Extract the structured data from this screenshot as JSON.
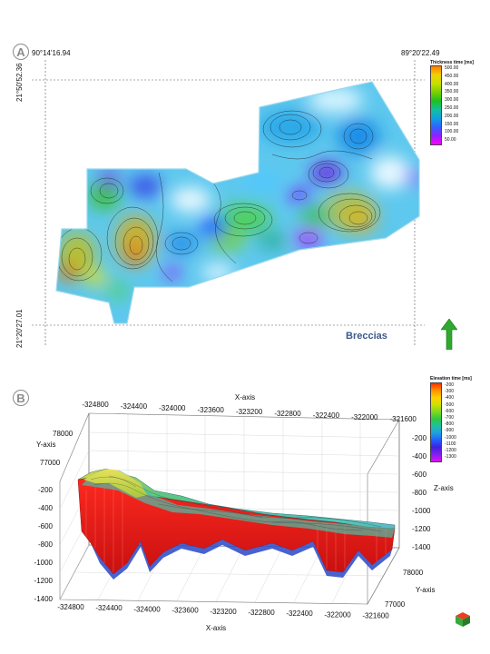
{
  "panel_a": {
    "letter": "A",
    "coord_top_left": "90°14'16.94",
    "coord_top_right": "89°20'22.49",
    "coord_left_top": "21°50'52.36",
    "coord_left_bottom": "21°20'27.01",
    "label": "Breccias",
    "north_arrow_icon": "north-arrow-icon",
    "legend": {
      "title": "Thickness time [ms]",
      "labels": [
        "500.00",
        "450.00",
        "400.00",
        "350.00",
        "300.00",
        "250.00",
        "200.00",
        "150.00",
        "100.00",
        "50.00"
      ],
      "colors": [
        "#ff7a00",
        "#f0d000",
        "#c8e000",
        "#78d000",
        "#20c020",
        "#10c0a0",
        "#10a0e0",
        "#3060ff",
        "#9020ff",
        "#ff00ff"
      ]
    }
  },
  "panel_b": {
    "letter": "B",
    "legend": {
      "title": "Elevation time [ms]",
      "labels": [
        "-200",
        "-300",
        "-400",
        "-500",
        "-600",
        "-700",
        "-800",
        "-900",
        "-1000",
        "-1100",
        "-1200",
        "-1300"
      ],
      "colors": [
        "#ff3000",
        "#ff9000",
        "#ffd000",
        "#d0e000",
        "#80d820",
        "#30c840",
        "#20c0a0",
        "#20a0e0",
        "#2060ff",
        "#4020e0",
        "#8020f0",
        "#e010f0"
      ]
    },
    "x_axis_title_top": "X-axis",
    "x_axis_title_bottom": "X-axis",
    "y_axis_title_left": "Y-axis",
    "y_axis_title_right": "Y-axis",
    "z_axis_title": "Z-axis",
    "x_ticks_top": [
      "-324800",
      "-324400",
      "-324000",
      "-323600",
      "-323200",
      "-322800",
      "-322400",
      "-322000",
      "-321600"
    ],
    "x_ticks_bottom": [
      "-324800",
      "-324400",
      "-324000",
      "-323600",
      "-323200",
      "-322800",
      "-322400",
      "-322000",
      "-321600"
    ],
    "y_ticks_left": [
      "78000",
      "77000"
    ],
    "y_ticks_right": [
      "78000",
      "77000"
    ],
    "z_ticks_left": [
      "-200",
      "-400",
      "-600",
      "-800",
      "-1000",
      "-1200",
      "-1400"
    ],
    "z_ticks_right": [
      "-200",
      "-400",
      "-600",
      "-800",
      "-1000",
      "-1200",
      "-1400"
    ],
    "nav_cube_icon": "nav-cube-icon"
  }
}
